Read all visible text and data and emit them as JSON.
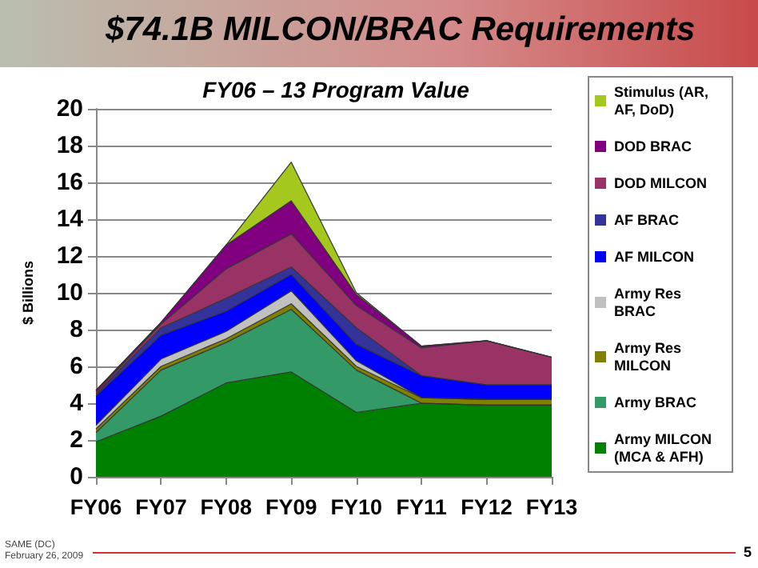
{
  "chart_data": {
    "type": "area",
    "title": "$74.1B  MILCON/BRAC Requirements",
    "subtitle": "FY06 – 13 Program Value",
    "ylabel": "$ Billions",
    "annotations": [
      "SAME (DC)",
      "February 26, 2009",
      "5"
    ],
    "categories": [
      "FY06",
      "FY07",
      "FY08",
      "FY09",
      "FY10",
      "FY11",
      "FY12",
      "FY13"
    ],
    "stacked": true,
    "ylim": [
      0,
      20
    ],
    "yticks": [
      0,
      2,
      4,
      6,
      8,
      10,
      12,
      14,
      16,
      18,
      20
    ],
    "grid": "y",
    "legend": "right",
    "series": [
      {
        "name": "Army MILCON (MCA & AFH)",
        "color": "#008000",
        "values": [
          1.9,
          3.3,
          5.1,
          5.7,
          3.5,
          4.0,
          3.9,
          3.9
        ]
      },
      {
        "name": "Army BRAC",
        "color": "#339966",
        "values": [
          0.5,
          2.5,
          2.2,
          3.4,
          2.3,
          0,
          0,
          0
        ]
      },
      {
        "name": "Army Res MILCON",
        "color": "#808000",
        "values": [
          0.2,
          0.2,
          0.2,
          0.3,
          0.2,
          0.3,
          0.3,
          0.3
        ]
      },
      {
        "name": "Army Res BRAC",
        "color": "#c0c0c0",
        "values": [
          0.2,
          0.4,
          0.4,
          0.7,
          0.3,
          0,
          0,
          0
        ]
      },
      {
        "name": "AF MILCON",
        "color": "#0000ff",
        "values": [
          1.6,
          1.3,
          1.1,
          0.9,
          0.9,
          1.2,
          0.8,
          0.8
        ]
      },
      {
        "name": "AF BRAC",
        "color": "#333399",
        "values": [
          0.1,
          0.4,
          0.7,
          0.4,
          0.9,
          0,
          0,
          0
        ]
      },
      {
        "name": "DOD MILCON",
        "color": "#993366",
        "values": [
          0.1,
          0.2,
          1.6,
          1.8,
          1.2,
          1.5,
          2.4,
          1.5
        ]
      },
      {
        "name": "DOD BRAC",
        "color": "#800080",
        "values": [
          0.1,
          0.1,
          1.3,
          1.8,
          0.6,
          0.1,
          0,
          0
        ]
      },
      {
        "name": "Stimulus (AR, AF, DoD)",
        "color": "#a4c81e",
        "values": [
          0,
          0,
          0,
          2.1,
          0.1,
          0,
          0,
          0
        ]
      }
    ]
  }
}
